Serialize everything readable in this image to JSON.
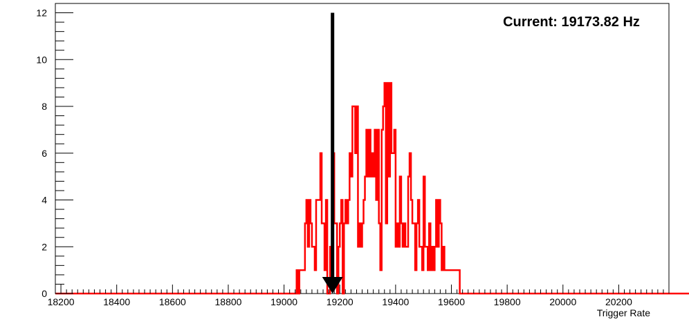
{
  "chart_data": {
    "type": "histogram",
    "xlabel": "Trigger Rate",
    "ylabel": "",
    "title": "",
    "xlim": [
      18180,
      20380
    ],
    "ylim": [
      0,
      12.4
    ],
    "grid": false,
    "x_ticks": [
      18200,
      18400,
      18600,
      18800,
      19000,
      19200,
      19400,
      19600,
      19800,
      20000,
      20200
    ],
    "y_ticks": [
      0,
      2,
      4,
      6,
      8,
      10,
      12
    ],
    "annotation": {
      "text": "Current: 19173.82 Hz",
      "value_hz": 19173.82
    },
    "marker": {
      "x": 19173.82,
      "from_y": 12,
      "to_y": 0,
      "style": "arrow-down"
    },
    "series": {
      "color": "#ff0000",
      "bin_width": 5,
      "first_bin": 18180,
      "counts": [
        0,
        0,
        0,
        0,
        0,
        0,
        0,
        0,
        0,
        0,
        0,
        0,
        0,
        0,
        0,
        0,
        0,
        0,
        0,
        0,
        0,
        0,
        0,
        0,
        0,
        0,
        0,
        0,
        0,
        0,
        0,
        0,
        0,
        0,
        0,
        0,
        0,
        0,
        0,
        0,
        0,
        0,
        0,
        0,
        0,
        0,
        0,
        0,
        0,
        0,
        0,
        0,
        0,
        0,
        0,
        0,
        0,
        0,
        0,
        0,
        0,
        0,
        0,
        0,
        0,
        0,
        0,
        0,
        0,
        0,
        0,
        0,
        0,
        0,
        0,
        0,
        0,
        0,
        0,
        0,
        0,
        0,
        0,
        0,
        0,
        0,
        0,
        0,
        0,
        0,
        0,
        0,
        0,
        0,
        0,
        0,
        0,
        0,
        0,
        0,
        0,
        0,
        0,
        0,
        0,
        0,
        0,
        0,
        0,
        0,
        0,
        0,
        0,
        0,
        0,
        0,
        0,
        0,
        0,
        0,
        0,
        0,
        0,
        0,
        0,
        0,
        0,
        0,
        0,
        0,
        0,
        0,
        0,
        0,
        0,
        0,
        0,
        0,
        0,
        0,
        0,
        0,
        0,
        0,
        0,
        0,
        0,
        0,
        0,
        0,
        0,
        0,
        0,
        0,
        0,
        0,
        0,
        0,
        0,
        0,
        0,
        0,
        0,
        0,
        0,
        0,
        0,
        0,
        0,
        0,
        0,
        0,
        0,
        1,
        0,
        1,
        1,
        1,
        1,
        3,
        4,
        2,
        4,
        3,
        2,
        2,
        1,
        4,
        4,
        4,
        6,
        3,
        3,
        1,
        4,
        0,
        0,
        2,
        1,
        6,
        3,
        3,
        0,
        2,
        3,
        4,
        0,
        3,
        4,
        3,
        4,
        6,
        5,
        8,
        8,
        6,
        8,
        2,
        3,
        2,
        3,
        4,
        5,
        7,
        5,
        7,
        5,
        6,
        5,
        7,
        4,
        7,
        3,
        1,
        7,
        8,
        9,
        3,
        9,
        5,
        9,
        6,
        6,
        7,
        2,
        3,
        2,
        5,
        3,
        2,
        3,
        2,
        2,
        5,
        6,
        4,
        3,
        3,
        1,
        3,
        4,
        2,
        2,
        1,
        5,
        2,
        2,
        1,
        3,
        1,
        2,
        1,
        2,
        4,
        2,
        4,
        3,
        1,
        2,
        1,
        1,
        1,
        1,
        1,
        1,
        1,
        1,
        1,
        1,
        1,
        0,
        0,
        0,
        0,
        0,
        0,
        0,
        0,
        0,
        0,
        0,
        0,
        0,
        0,
        0,
        0,
        0,
        0,
        0,
        0,
        0,
        0,
        0,
        0,
        0,
        0,
        0,
        0,
        0,
        0,
        0,
        0,
        0,
        0,
        0,
        0,
        0,
        0,
        0,
        0,
        0,
        0,
        0,
        0,
        0,
        0,
        0,
        0,
        0,
        0,
        0,
        0,
        0,
        0,
        0,
        0,
        0,
        0,
        0,
        0,
        0,
        0,
        0,
        0,
        0,
        0,
        0,
        0,
        0,
        0,
        0,
        0,
        0,
        0,
        0,
        0,
        0,
        0,
        0,
        0,
        0,
        0,
        0,
        0,
        0,
        0,
        0,
        0,
        0,
        0,
        0,
        0,
        0,
        0,
        0,
        0,
        0,
        0,
        0,
        0,
        0,
        0,
        0,
        0,
        0,
        0,
        0,
        0,
        0,
        0,
        0,
        0,
        0,
        0,
        0,
        0,
        0,
        0,
        0,
        0,
        0,
        0,
        0,
        0,
        0,
        0,
        0,
        0,
        0,
        0,
        0,
        0,
        0,
        0,
        0,
        0,
        0,
        0,
        0,
        0,
        0,
        0,
        0,
        0,
        0,
        0,
        0,
        0,
        0,
        0,
        0,
        0,
        0,
        0,
        0,
        0,
        0,
        0,
        0,
        0,
        0,
        0,
        0,
        0,
        0,
        0,
        0,
        0,
        0,
        0,
        0,
        0,
        0,
        0,
        0,
        0,
        0,
        0,
        0,
        0,
        0,
        0,
        0,
        0,
        0,
        0
      ]
    }
  }
}
